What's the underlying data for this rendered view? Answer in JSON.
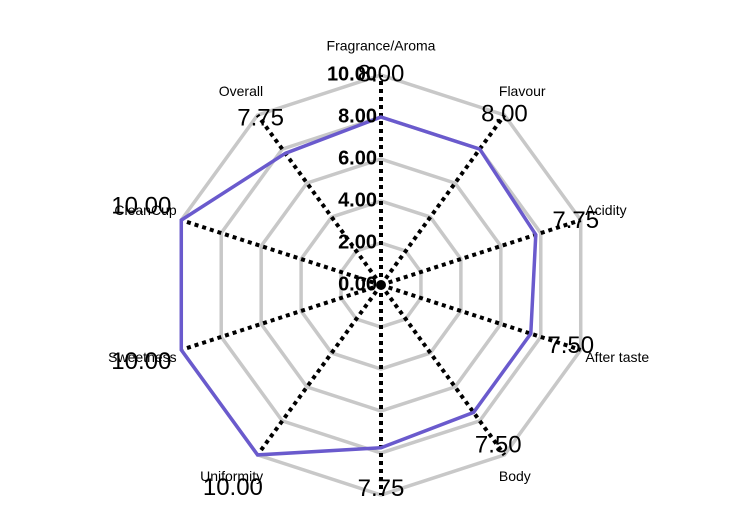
{
  "chart_data": {
    "type": "radar",
    "categories": [
      "Fragrance/Aroma",
      "Flavour",
      "Acidity",
      "After taste",
      "Body",
      null,
      "Uniformity",
      "Sweetness",
      "CleanCup",
      "Overall"
    ],
    "values": [
      8,
      8,
      7.75,
      7.5,
      7.5,
      7.75,
      10,
      10,
      10,
      7.75
    ],
    "value_labels": [
      "8.00",
      "8.00",
      "7.75",
      "7.50",
      "7.50",
      "7.75",
      "10.00",
      "10.00",
      "10.00",
      "7.75"
    ],
    "color": "#6a5acd",
    "ylim": [
      0,
      10
    ],
    "yticks": [
      {
        "value": 0,
        "label": "0.00"
      },
      {
        "value": 2,
        "label": "2.00"
      },
      {
        "value": 4,
        "label": "4.00"
      },
      {
        "value": 6,
        "label": "6.00"
      },
      {
        "value": 8,
        "label": "8.00"
      },
      {
        "value": 10,
        "label": "10.00"
      }
    ],
    "grid": true
  }
}
